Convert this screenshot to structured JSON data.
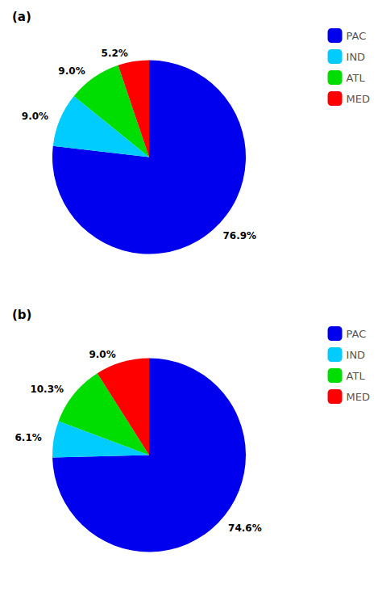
{
  "chart_data": [
    {
      "type": "pie",
      "title": "(a)",
      "categories": [
        "PAC",
        "IND",
        "ATL",
        "MED"
      ],
      "values": [
        76.9,
        9.0,
        9.0,
        5.2
      ],
      "value_labels": [
        "76.9%",
        "9.0%",
        "9.0%",
        "5.2%"
      ],
      "colors": [
        "#0000EE",
        "#00CCFF",
        "#00DD00",
        "#FF0000"
      ],
      "data_labels": true,
      "legend": "upper right"
    },
    {
      "type": "pie",
      "title": "(b)",
      "categories": [
        "PAC",
        "IND",
        "ATL",
        "MED"
      ],
      "values": [
        74.6,
        6.1,
        10.3,
        9.0
      ],
      "value_labels": [
        "74.6%",
        "6.1%",
        "10.3%",
        "9.0%"
      ],
      "colors": [
        "#0000EE",
        "#00CCFF",
        "#00DD00",
        "#FF0000"
      ],
      "data_labels": true,
      "legend": "upper right"
    }
  ]
}
